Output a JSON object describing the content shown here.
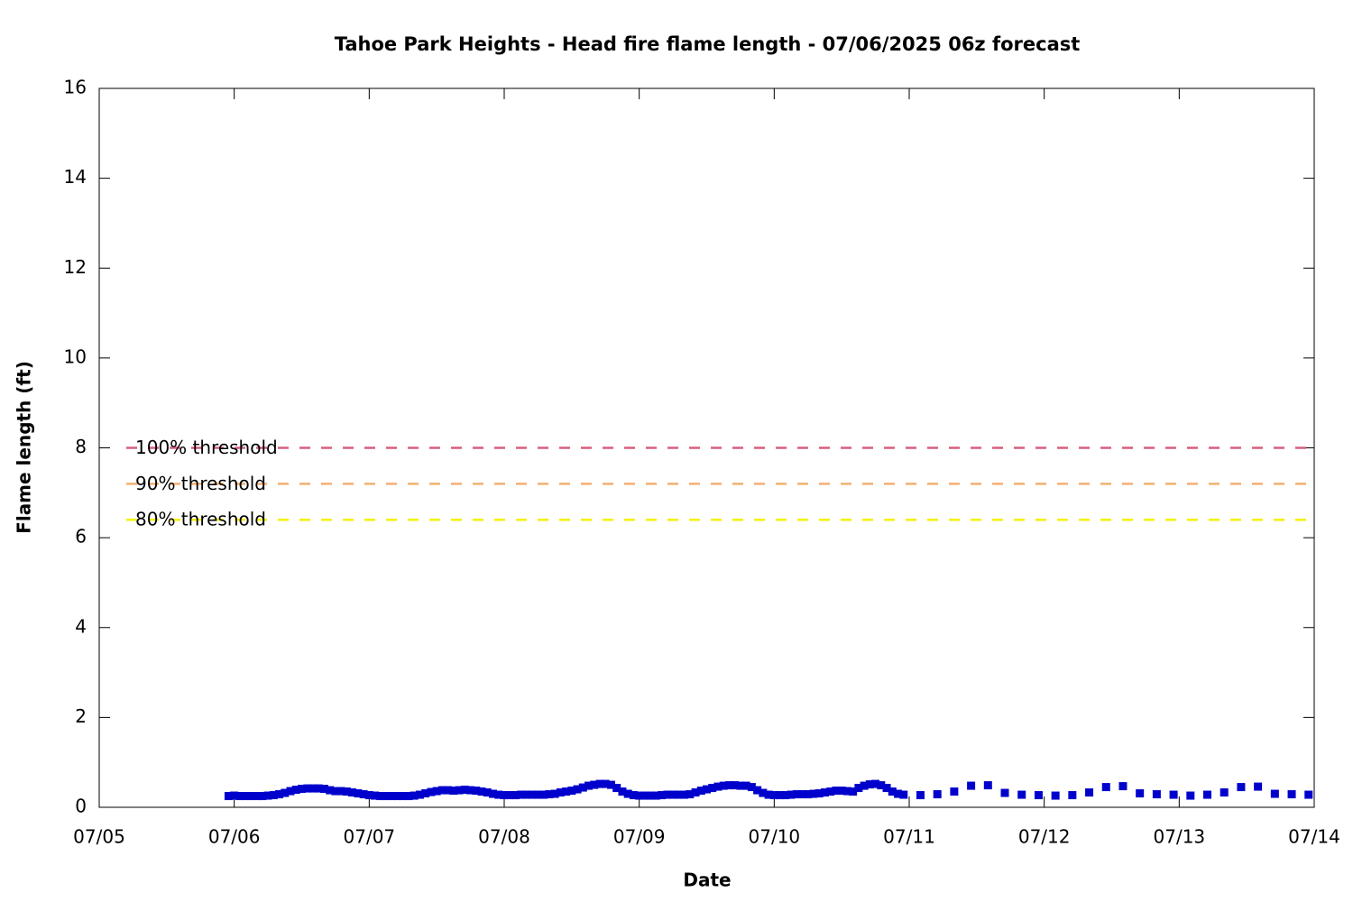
{
  "chart_data": {
    "type": "scatter",
    "title": "Tahoe Park Heights - Head fire flame length - 07/06/2025 06z forecast",
    "x_label": "Date",
    "y_label": "Flame length (ft)",
    "color": "#0000cc",
    "xlim": [
      0,
      216
    ],
    "xticks": [
      {
        "value": 0,
        "label": "07/05"
      },
      {
        "value": 24,
        "label": "07/06"
      },
      {
        "value": 48,
        "label": "07/07"
      },
      {
        "value": 72,
        "label": "07/08"
      },
      {
        "value": 96,
        "label": "07/09"
      },
      {
        "value": 120,
        "label": "07/10"
      },
      {
        "value": 144,
        "label": "07/11"
      },
      {
        "value": 168,
        "label": "07/12"
      },
      {
        "value": 192,
        "label": "07/13"
      },
      {
        "value": 216,
        "label": "07/14"
      }
    ],
    "ylim": [
      0,
      16
    ],
    "yticks": [
      0,
      2,
      4,
      6,
      8,
      10,
      12,
      14,
      16
    ],
    "thresholds": [
      {
        "name": "100% threshold",
        "value": 8,
        "color": "#d6607e"
      },
      {
        "name": "90% threshold",
        "value": 7.2,
        "color": "#f2b070"
      },
      {
        "name": "80% threshold",
        "value": 6.4,
        "color": "#f2f200"
      }
    ],
    "x": [
      23,
      24,
      25,
      26,
      27,
      28,
      29,
      30,
      31,
      32,
      33,
      34,
      35,
      36,
      37,
      38,
      39,
      40,
      41,
      42,
      43,
      44,
      45,
      46,
      47,
      48,
      49,
      50,
      51,
      52,
      53,
      54,
      55,
      56,
      57,
      58,
      59,
      60,
      61,
      62,
      63,
      64,
      65,
      66,
      67,
      68,
      69,
      70,
      71,
      72,
      73,
      74,
      75,
      76,
      77,
      78,
      79,
      80,
      81,
      82,
      83,
      84,
      85,
      86,
      87,
      88,
      89,
      90,
      91,
      92,
      93,
      94,
      95,
      96,
      97,
      98,
      99,
      100,
      101,
      102,
      103,
      104,
      105,
      106,
      107,
      108,
      109,
      110,
      111,
      112,
      113,
      114,
      115,
      116,
      117,
      118,
      119,
      120,
      121,
      122,
      123,
      124,
      125,
      126,
      127,
      128,
      129,
      130,
      131,
      132,
      133,
      134,
      135,
      136,
      137,
      138,
      139,
      140,
      141,
      142,
      143,
      146,
      149,
      152,
      155,
      158,
      161,
      164,
      167,
      170,
      173,
      176,
      179,
      182,
      185,
      188,
      191,
      194,
      197,
      200,
      203,
      206,
      209,
      212,
      215
    ],
    "values": [
      0.25,
      0.26,
      0.25,
      0.25,
      0.25,
      0.25,
      0.25,
      0.26,
      0.27,
      0.29,
      0.32,
      0.36,
      0.39,
      0.41,
      0.42,
      0.42,
      0.42,
      0.41,
      0.38,
      0.36,
      0.36,
      0.35,
      0.33,
      0.31,
      0.29,
      0.27,
      0.26,
      0.25,
      0.25,
      0.25,
      0.25,
      0.25,
      0.25,
      0.26,
      0.28,
      0.31,
      0.34,
      0.36,
      0.38,
      0.38,
      0.37,
      0.38,
      0.39,
      0.38,
      0.37,
      0.35,
      0.33,
      0.3,
      0.28,
      0.27,
      0.27,
      0.27,
      0.28,
      0.28,
      0.28,
      0.28,
      0.28,
      0.29,
      0.3,
      0.33,
      0.35,
      0.37,
      0.4,
      0.44,
      0.48,
      0.5,
      0.52,
      0.52,
      0.5,
      0.43,
      0.35,
      0.3,
      0.27,
      0.26,
      0.26,
      0.26,
      0.26,
      0.27,
      0.28,
      0.28,
      0.28,
      0.28,
      0.29,
      0.33,
      0.37,
      0.4,
      0.43,
      0.46,
      0.48,
      0.49,
      0.49,
      0.48,
      0.48,
      0.45,
      0.38,
      0.32,
      0.28,
      0.27,
      0.27,
      0.27,
      0.28,
      0.29,
      0.29,
      0.29,
      0.3,
      0.31,
      0.33,
      0.35,
      0.37,
      0.37,
      0.36,
      0.35,
      0.43,
      0.48,
      0.51,
      0.52,
      0.49,
      0.43,
      0.35,
      0.3,
      0.28,
      0.27,
      0.29,
      0.35,
      0.48,
      0.49,
      0.32,
      0.28,
      0.27,
      0.26,
      0.27,
      0.33,
      0.45,
      0.47,
      0.31,
      0.29,
      0.28,
      0.26,
      0.28,
      0.33,
      0.45,
      0.46,
      0.3,
      0.29,
      0.28
    ]
  }
}
